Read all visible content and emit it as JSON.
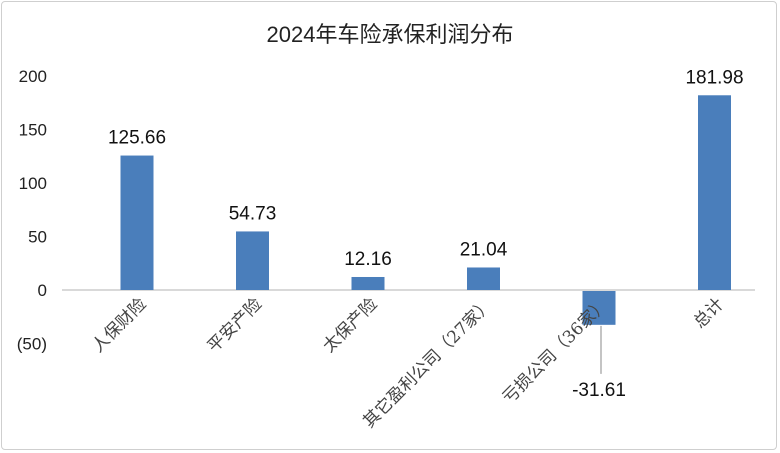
{
  "chart_data": {
    "type": "bar",
    "title": "2024年车险承保利润分布",
    "categories": [
      "人保财险",
      "平安产险",
      "太保产险",
      "其它盈利公司（27家）",
      "亏损公司（36家）",
      "总计"
    ],
    "values": [
      125.66,
      54.73,
      12.16,
      21.04,
      -31.61,
      181.98
    ],
    "data_labels": [
      "125.66",
      "54.73",
      "12.16",
      "21.04",
      "-31.61",
      "181.98"
    ],
    "y_ticks": [
      {
        "value": 200,
        "label": "200"
      },
      {
        "value": 150,
        "label": "150"
      },
      {
        "value": 100,
        "label": "100"
      },
      {
        "value": 50,
        "label": "50"
      },
      {
        "value": 0,
        "label": "0"
      },
      {
        "value": -50,
        "label": "(50)"
      }
    ],
    "ylim": [
      -50,
      200
    ],
    "grid": false,
    "colors": {
      "bar": "#4a7ebb",
      "negative_tick": "#c00000",
      "axis": "#d9d9d9"
    }
  }
}
